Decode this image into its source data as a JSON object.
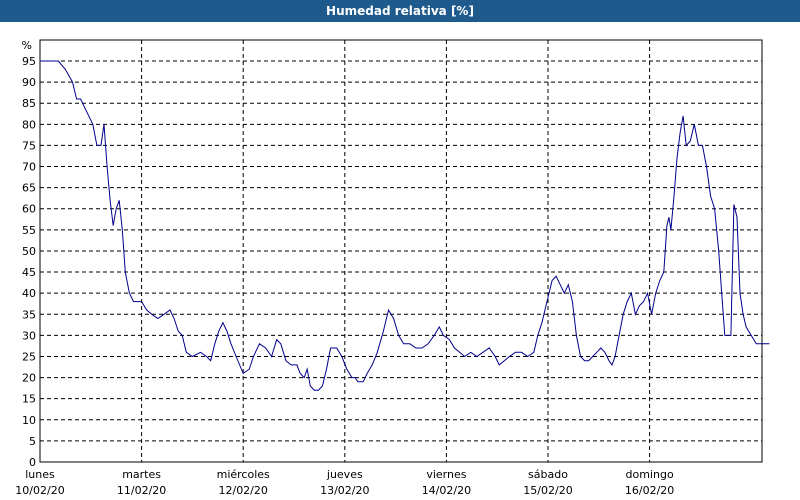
{
  "window": {
    "title": "Humedad relativa [%]"
  },
  "colors": {
    "title_bar": "#1e5a8c",
    "series": "#00008b",
    "grid": "#000000"
  },
  "chart_data": {
    "type": "line",
    "title": "Humedad relativa [%]",
    "ylabel": "%",
    "ylim": [
      0,
      100
    ],
    "yticks": [
      0,
      5,
      10,
      15,
      20,
      25,
      30,
      35,
      40,
      45,
      50,
      55,
      60,
      65,
      70,
      75,
      80,
      85,
      90,
      95
    ],
    "xlim": [
      0,
      7
    ],
    "xticks": [
      {
        "pos": 0,
        "day": "lunes",
        "date": "10/02/20"
      },
      {
        "pos": 1,
        "day": "martes",
        "date": "11/02/20"
      },
      {
        "pos": 2,
        "day": "miércoles",
        "date": "12/02/20"
      },
      {
        "pos": 3,
        "day": "jueves",
        "date": "13/02/20"
      },
      {
        "pos": 4,
        "day": "viernes",
        "date": "14/02/20"
      },
      {
        "pos": 5,
        "day": "sábado",
        "date": "15/02/20"
      },
      {
        "pos": 6,
        "day": "domingo",
        "date": "16/02/20"
      }
    ],
    "grid": true,
    "series": [
      {
        "values": [
          [
            0.0,
            95
          ],
          [
            0.1,
            95
          ],
          [
            0.18,
            95
          ],
          [
            0.25,
            93
          ],
          [
            0.32,
            90
          ],
          [
            0.36,
            86
          ],
          [
            0.4,
            86
          ],
          [
            0.46,
            83
          ],
          [
            0.52,
            80
          ],
          [
            0.56,
            75
          ],
          [
            0.6,
            75
          ],
          [
            0.63,
            80
          ],
          [
            0.66,
            70
          ],
          [
            0.69,
            62
          ],
          [
            0.72,
            56
          ],
          [
            0.75,
            60
          ],
          [
            0.78,
            62
          ],
          [
            0.81,
            55
          ],
          [
            0.84,
            45
          ],
          [
            0.88,
            40
          ],
          [
            0.92,
            38
          ],
          [
            1.0,
            38
          ],
          [
            1.05,
            36
          ],
          [
            1.1,
            35
          ],
          [
            1.16,
            34
          ],
          [
            1.22,
            35
          ],
          [
            1.28,
            36
          ],
          [
            1.32,
            34
          ],
          [
            1.36,
            31
          ],
          [
            1.4,
            30
          ],
          [
            1.44,
            26
          ],
          [
            1.5,
            25
          ],
          [
            1.58,
            26
          ],
          [
            1.64,
            25
          ],
          [
            1.68,
            24
          ],
          [
            1.72,
            28
          ],
          [
            1.76,
            31
          ],
          [
            1.8,
            33
          ],
          [
            1.84,
            31
          ],
          [
            1.88,
            28
          ],
          [
            1.93,
            25
          ],
          [
            2.0,
            21
          ],
          [
            2.06,
            22
          ],
          [
            2.1,
            25
          ],
          [
            2.16,
            28
          ],
          [
            2.22,
            27
          ],
          [
            2.28,
            25
          ],
          [
            2.33,
            29
          ],
          [
            2.37,
            28
          ],
          [
            2.42,
            24
          ],
          [
            2.47,
            23
          ],
          [
            2.53,
            23
          ],
          [
            2.56,
            21
          ],
          [
            2.6,
            20
          ],
          [
            2.63,
            22
          ],
          [
            2.66,
            18
          ],
          [
            2.7,
            17
          ],
          [
            2.74,
            17
          ],
          [
            2.78,
            18
          ],
          [
            2.82,
            22
          ],
          [
            2.86,
            27
          ],
          [
            2.92,
            27
          ],
          [
            2.97,
            25
          ],
          [
            3.02,
            22
          ],
          [
            3.07,
            20
          ],
          [
            3.1,
            20
          ],
          [
            3.13,
            19
          ],
          [
            3.18,
            19
          ],
          [
            3.22,
            21
          ],
          [
            3.27,
            23
          ],
          [
            3.32,
            26
          ],
          [
            3.38,
            31
          ],
          [
            3.43,
            36
          ],
          [
            3.48,
            34
          ],
          [
            3.53,
            30
          ],
          [
            3.58,
            28
          ],
          [
            3.64,
            28
          ],
          [
            3.7,
            27
          ],
          [
            3.76,
            27
          ],
          [
            3.82,
            28
          ],
          [
            3.88,
            30
          ],
          [
            3.93,
            32
          ],
          [
            3.97,
            30
          ],
          [
            4.03,
            29
          ],
          [
            4.08,
            27
          ],
          [
            4.13,
            26
          ],
          [
            4.18,
            25
          ],
          [
            4.24,
            26
          ],
          [
            4.3,
            25
          ],
          [
            4.36,
            26
          ],
          [
            4.42,
            27
          ],
          [
            4.48,
            25
          ],
          [
            4.52,
            23
          ],
          [
            4.57,
            24
          ],
          [
            4.62,
            25
          ],
          [
            4.68,
            26
          ],
          [
            4.74,
            26
          ],
          [
            4.8,
            25
          ],
          [
            4.86,
            26
          ],
          [
            4.9,
            30
          ],
          [
            4.94,
            33
          ],
          [
            5.0,
            39
          ],
          [
            5.04,
            43
          ],
          [
            5.08,
            44
          ],
          [
            5.12,
            42
          ],
          [
            5.16,
            40
          ],
          [
            5.2,
            42
          ],
          [
            5.24,
            38
          ],
          [
            5.28,
            30
          ],
          [
            5.32,
            25
          ],
          [
            5.36,
            24
          ],
          [
            5.4,
            24
          ],
          [
            5.44,
            25
          ],
          [
            5.48,
            26
          ],
          [
            5.52,
            27
          ],
          [
            5.56,
            26
          ],
          [
            5.6,
            24
          ],
          [
            5.63,
            23
          ],
          [
            5.66,
            25
          ],
          [
            5.7,
            30
          ],
          [
            5.74,
            35
          ],
          [
            5.78,
            38
          ],
          [
            5.82,
            40
          ],
          [
            5.86,
            35
          ],
          [
            5.9,
            37
          ],
          [
            5.94,
            38
          ],
          [
            5.98,
            40
          ],
          [
            6.02,
            35
          ],
          [
            6.06,
            40
          ],
          [
            6.1,
            43
          ],
          [
            6.14,
            45
          ],
          [
            6.17,
            56
          ],
          [
            6.19,
            58
          ],
          [
            6.21,
            55
          ],
          [
            6.24,
            63
          ],
          [
            6.27,
            72
          ],
          [
            6.3,
            78
          ],
          [
            6.33,
            82
          ],
          [
            6.36,
            75
          ],
          [
            6.4,
            76
          ],
          [
            6.44,
            80
          ],
          [
            6.48,
            75
          ],
          [
            6.52,
            75
          ],
          [
            6.56,
            70
          ],
          [
            6.6,
            63
          ],
          [
            6.64,
            60
          ],
          [
            6.68,
            50
          ],
          [
            6.71,
            40
          ],
          [
            6.74,
            30
          ],
          [
            6.76,
            30
          ],
          [
            6.8,
            30
          ],
          [
            6.83,
            61
          ],
          [
            6.86,
            58
          ],
          [
            6.89,
            40
          ],
          [
            6.92,
            35
          ],
          [
            6.95,
            32
          ],
          [
            7.0,
            30
          ],
          [
            7.05,
            28
          ],
          [
            7.12,
            28
          ],
          [
            7.18,
            28
          ]
        ]
      }
    ]
  }
}
